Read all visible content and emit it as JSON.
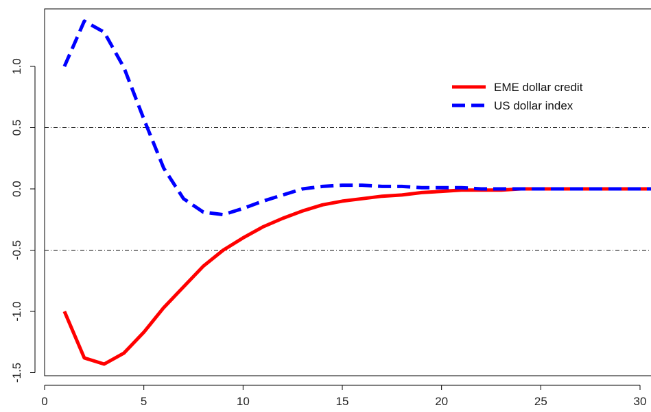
{
  "chart_data": {
    "type": "line",
    "title": "",
    "xlabel": "",
    "ylabel": "",
    "xlim": [
      1,
      30
    ],
    "ylim": [
      -1.45,
      1.38
    ],
    "x_ticks": [
      0,
      5,
      10,
      15,
      20,
      25,
      30
    ],
    "y_ticks": [
      -1.5,
      -1.0,
      -0.5,
      0.0,
      0.5,
      1.0
    ],
    "x_tick_labels": [
      "0",
      "5",
      "10",
      "15",
      "20",
      "25",
      "30"
    ],
    "y_tick_labels": [
      "-1.5",
      "-1.0",
      "-0.5",
      "0.0",
      "0.5",
      "1.0"
    ],
    "reference_lines": [
      0.5,
      -0.5
    ],
    "reference_line_style": "dot-dash",
    "grid": false,
    "legend_position": "top-right",
    "x": [
      1,
      2,
      3,
      4,
      5,
      6,
      7,
      8,
      9,
      10,
      11,
      12,
      13,
      14,
      15,
      16,
      17,
      18,
      19,
      20,
      21,
      22,
      23,
      24,
      25,
      26,
      27,
      28,
      29,
      30,
      31
    ],
    "series": [
      {
        "name": "EME dollar credit",
        "color": "#ff0000",
        "style": "solid",
        "values": [
          -1.0,
          -1.38,
          -1.43,
          -1.34,
          -1.17,
          -0.97,
          -0.8,
          -0.63,
          -0.5,
          -0.4,
          -0.31,
          -0.24,
          -0.18,
          -0.13,
          -0.1,
          -0.08,
          -0.06,
          -0.05,
          -0.03,
          -0.02,
          -0.01,
          -0.01,
          -0.01,
          0.0,
          0.0,
          0.0,
          0.0,
          0.0,
          0.0,
          0.0,
          0.0
        ]
      },
      {
        "name": "US dollar index",
        "color": "#0000ff",
        "style": "dashed",
        "values": [
          1.0,
          1.37,
          1.28,
          0.99,
          0.57,
          0.17,
          -0.08,
          -0.19,
          -0.21,
          -0.16,
          -0.1,
          -0.05,
          0.0,
          0.02,
          0.03,
          0.03,
          0.02,
          0.02,
          0.01,
          0.01,
          0.01,
          0.0,
          0.0,
          0.0,
          0.0,
          0.0,
          0.0,
          0.0,
          0.0,
          0.0,
          0.0
        ]
      }
    ]
  }
}
